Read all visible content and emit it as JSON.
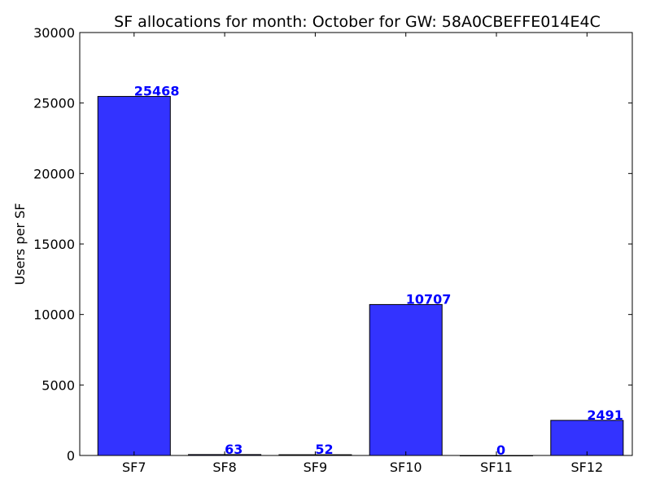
{
  "chart_data": {
    "type": "bar",
    "title": "SF allocations for month: October for GW: 58A0CBEFFE014E4C",
    "xlabel": "",
    "ylabel": "Users per SF",
    "categories": [
      "SF7",
      "SF8",
      "SF9",
      "SF10",
      "SF11",
      "SF12"
    ],
    "values": [
      25468,
      63,
      52,
      10707,
      0,
      2491
    ],
    "data_labels": [
      "25468",
      "63",
      "52",
      "10707",
      "0",
      "2491"
    ],
    "ylim": [
      0,
      30000
    ],
    "yticks": [
      0,
      5000,
      10000,
      15000,
      20000,
      25000,
      30000
    ],
    "ytick_labels": [
      "0",
      "5000",
      "10000",
      "15000",
      "20000",
      "25000",
      "30000"
    ],
    "xlim": [
      -0.6,
      5.5
    ],
    "bar_width": 0.8,
    "grid": false,
    "legend": "none",
    "colors": {
      "bar_fill": "#3333ff",
      "bar_edge": "#000000",
      "data_label": "#0000ff"
    }
  }
}
